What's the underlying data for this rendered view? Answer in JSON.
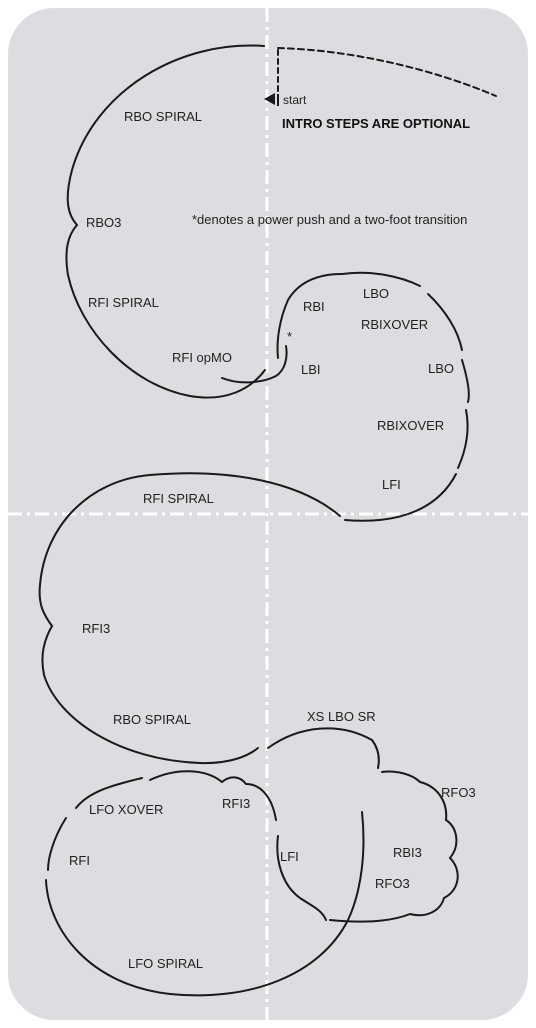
{
  "intro_note": "INTRO STEPS ARE OPTIONAL",
  "start_label": "start",
  "footnote": "*denotes a power push and a two-foot transition",
  "power_push_mark": "*",
  "labels": {
    "rbo_spiral_top": "RBO SPIRAL",
    "rbo3": "RBO3",
    "rfi_spiral_top": "RFI SPIRAL",
    "rfi_opmo": "RFI opMO",
    "rbi": "RBI",
    "lbo_1": "LBO",
    "rbixover_1": "RBIXOVER",
    "lbi": "LBI",
    "lbo_2": "LBO",
    "rbixover_2": "RBIXOVER",
    "lfi_mid": "LFI",
    "rfi_spiral_mid": "RFI SPIRAL",
    "rfi3": "RFI3",
    "rbo_spiral_bottom": "RBO SPIRAL",
    "xs_lbo_sr": "XS LBO SR",
    "rfo3_1": "RFO3",
    "rbi3": "RBI3",
    "rfo3_2": "RFO3",
    "lfo_xover": "LFO XOVER",
    "rfi3_small": "RFI3",
    "rfi": "RFI",
    "lfi_bottom": "LFI",
    "lfo_spiral": "LFO SPIRAL"
  }
}
